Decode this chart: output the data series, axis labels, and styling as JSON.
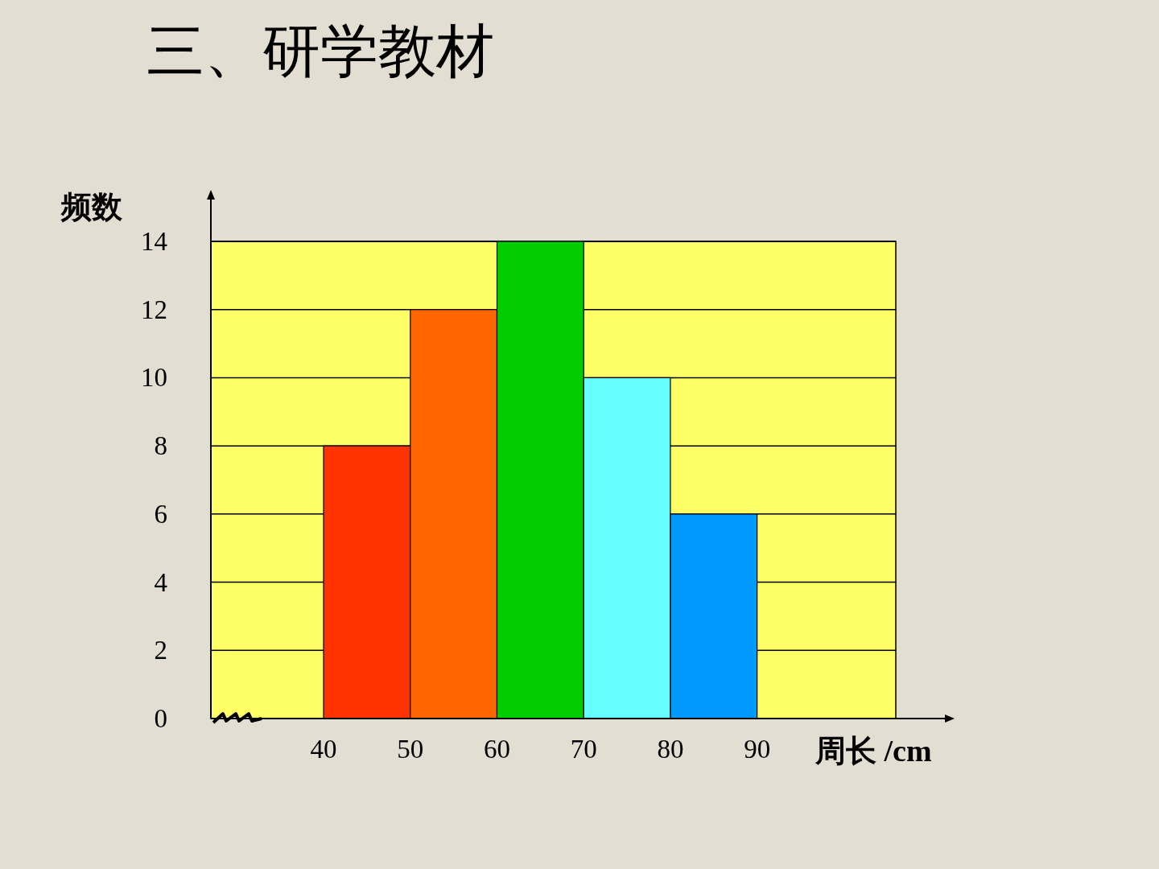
{
  "chart_data": {
    "type": "histogram",
    "title": "三、研学教材",
    "xlabel": "周长 /cm",
    "ylabel": "频数",
    "bins": [
      40,
      50,
      60,
      70,
      80,
      90
    ],
    "values": [
      8,
      12,
      14,
      10,
      6
    ],
    "colors": [
      "#ff3300",
      "#ff6600",
      "#00cc00",
      "#66ffff",
      "#0099ff"
    ],
    "xlim": [
      27,
      106
    ],
    "ylim": [
      0,
      14
    ],
    "xticks": [
      40,
      50,
      60,
      70,
      80,
      90
    ],
    "yticks": [
      0,
      2,
      4,
      6,
      8,
      10,
      12,
      14
    ],
    "grid": "y"
  }
}
